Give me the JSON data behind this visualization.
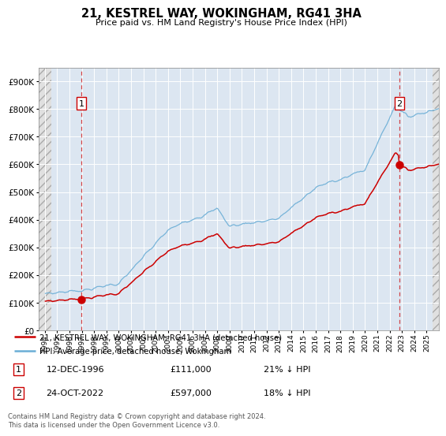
{
  "title": "21, KESTREL WAY, WOKINGHAM, RG41 3HA",
  "subtitle": "Price paid vs. HM Land Registry's House Price Index (HPI)",
  "hpi_color": "#6baed6",
  "price_color": "#cc0000",
  "transaction1_year": 1996,
  "transaction1_month": 12,
  "transaction1_date": 1996.958,
  "transaction1_price": 111000,
  "transaction2_year": 2022,
  "transaction2_month": 10,
  "transaction2_date": 2022.791,
  "transaction2_price": 597000,
  "legend_line1": "21, KESTREL WAY, WOKINGHAM, RG41 3HA (detached house)",
  "legend_line2": "HPI: Average price, detached house, Wokingham",
  "annotation1_date": "12-DEC-1996",
  "annotation1_price": "£111,000",
  "annotation1_hpi": "21% ↓ HPI",
  "annotation2_date": "24-OCT-2022",
  "annotation2_price": "£597,000",
  "annotation2_hpi": "18% ↓ HPI",
  "footer": "Contains HM Land Registry data © Crown copyright and database right 2024.\nThis data is licensed under the Open Government Licence v3.0.",
  "ylim_max": 950000,
  "xmin": 1993.5,
  "xmax": 2026.0,
  "plot_bg_color": "#dce6f1",
  "hatch_facecolor": "#e8e8e8"
}
